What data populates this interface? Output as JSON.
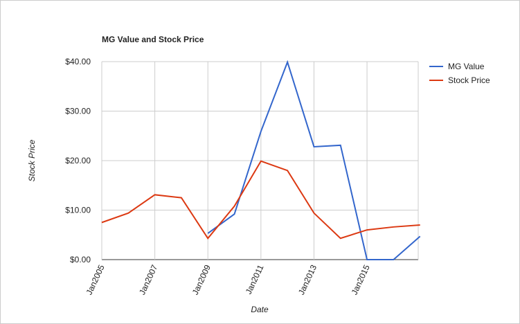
{
  "chart_data": {
    "type": "line",
    "title": "MG Value and Stock Price",
    "x_label": "Date",
    "y_label": "Stock Price",
    "x": [
      2005,
      2006,
      2007,
      2008,
      2009,
      2010,
      2011,
      2012,
      2013,
      2014,
      2015,
      2016,
      2017
    ],
    "series": [
      {
        "name": "MG Value",
        "color": "#3366cc",
        "values": [
          null,
          null,
          null,
          null,
          5.3,
          9.2,
          25.9,
          39.9,
          22.8,
          23.1,
          0,
          0,
          4.7
        ]
      },
      {
        "name": "Stock Price",
        "color": "#dc3912",
        "values": [
          7.5,
          9.4,
          13.1,
          12.5,
          4.3,
          10.8,
          19.9,
          18.0,
          9.4,
          4.3,
          6.0,
          6.6,
          7.0
        ]
      }
    ],
    "xlim": [
      2005,
      2016.93
    ],
    "xticks": [
      {
        "value": 2005,
        "label": "Jan2005"
      },
      {
        "value": 2007,
        "label": "Jan2007"
      },
      {
        "value": 2009,
        "label": "Jan2009"
      },
      {
        "value": 2011,
        "label": "Jan2011"
      },
      {
        "value": 2013,
        "label": "Jan2013"
      },
      {
        "value": 2015,
        "label": "Jan2015"
      }
    ],
    "ylim": [
      0,
      40
    ],
    "yticks": [
      {
        "value": 0,
        "label": "$0.00"
      },
      {
        "value": 10,
        "label": "$10.00"
      },
      {
        "value": 20,
        "label": "$20.00"
      },
      {
        "value": 30,
        "label": "$30.00"
      },
      {
        "value": 40,
        "label": "$40.00"
      }
    ],
    "grid": true,
    "legend": "right"
  }
}
